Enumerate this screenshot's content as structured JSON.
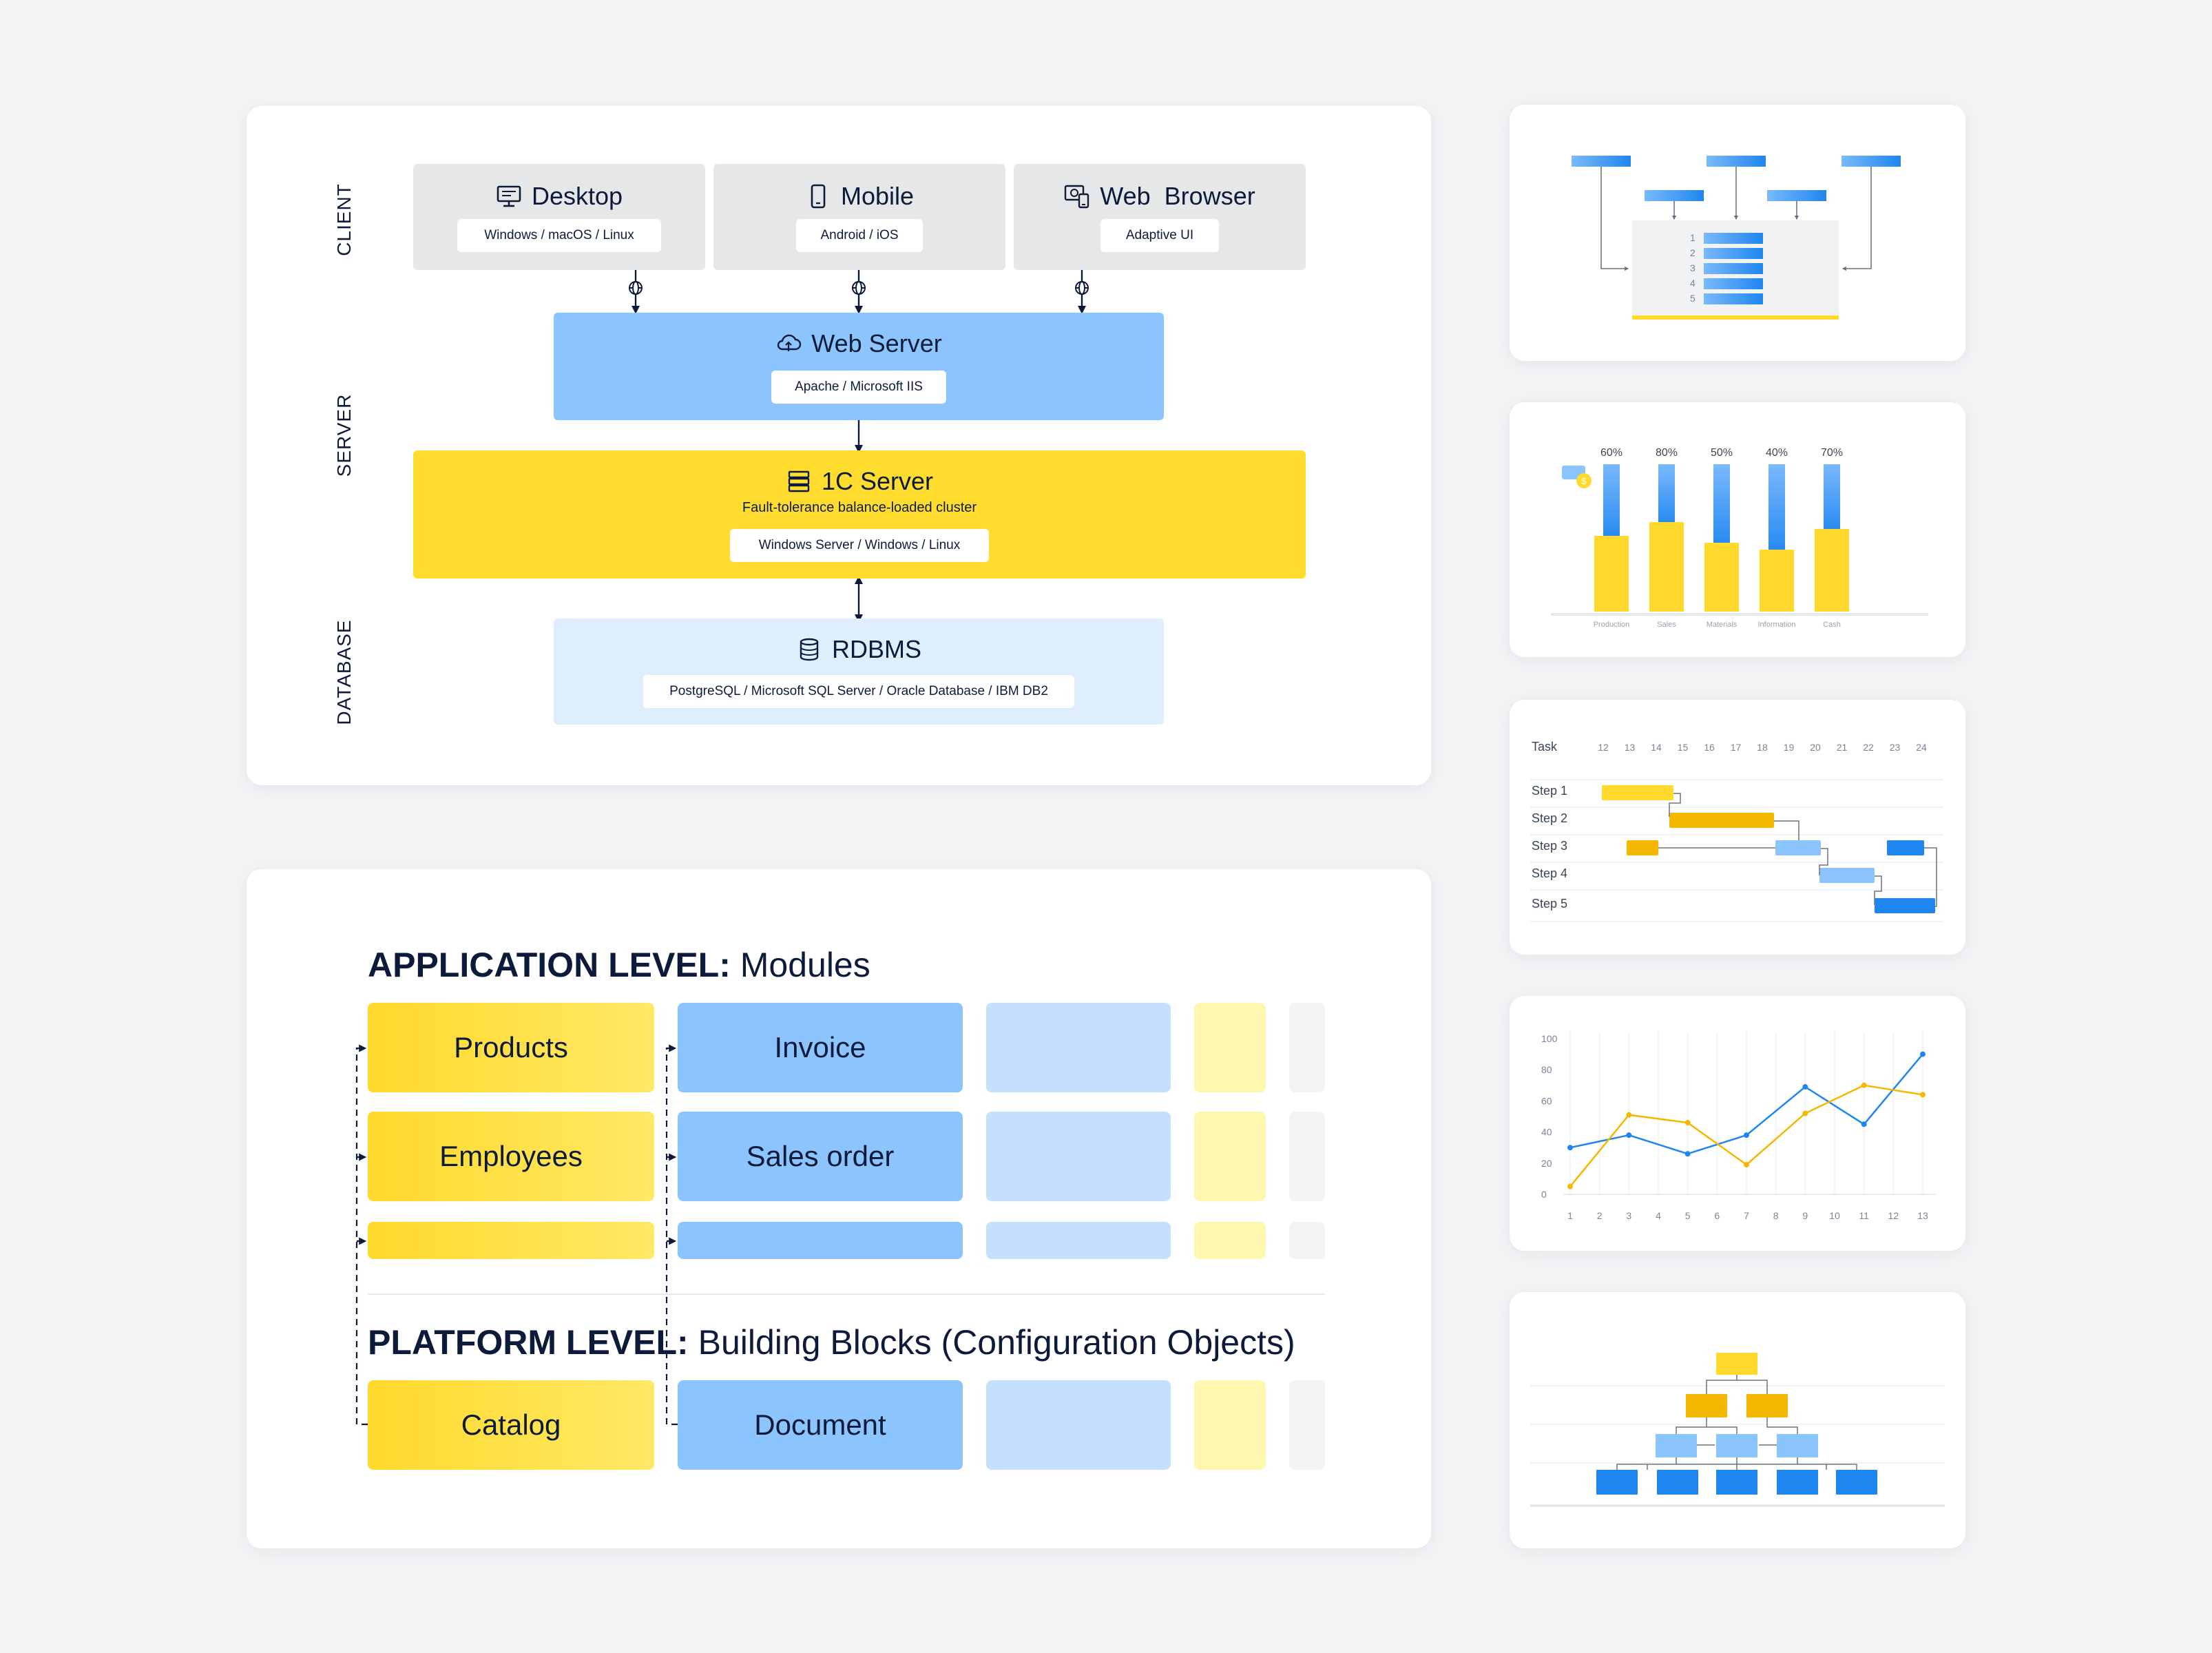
{
  "architecture": {
    "tiers": [
      "CLIENT",
      "SERVER",
      "DATABASE"
    ],
    "clients": [
      {
        "title": "Desktop",
        "sub": "Windows / macOS / Linux",
        "icon": "desktop-icon"
      },
      {
        "title": "Mobile",
        "sub": "Android / iOS",
        "icon": "mobile-icon"
      },
      {
        "title": "Web  Browser",
        "sub": "Adaptive UI",
        "icon": "web-browser-icon"
      }
    ],
    "web_server": {
      "title": "Web Server",
      "sub": "Apache / Microsoft IIS",
      "icon": "cloud-icon"
    },
    "server_1c": {
      "title": "1C Server",
      "desc": "Fault-tolerance balance-loaded cluster",
      "sub": "Windows Server / Windows / Linux",
      "icon": "server-stack-icon"
    },
    "rdbms": {
      "title": "RDBMS",
      "sub": "PostgreSQL / Microsoft SQL Server / Oracle Database / IBM DB2",
      "icon": "database-icon"
    },
    "colors": {
      "client_bg": "#e6e7e9",
      "web_server_bg": "#8cc4fd",
      "server_bg": "#ffdc2e",
      "db_bg": "#dfeefd"
    }
  },
  "levels": {
    "application": {
      "label_bold": "APPLICATION LEVEL:",
      "label_rest": " Modules"
    },
    "platform": {
      "label_bold": "PLATFORM LEVEL:",
      "label_rest": " Building Blocks (Configuration Objects)"
    },
    "modules": {
      "products": "Products",
      "invoice": "Invoice",
      "employees": "Employees",
      "sales_order": "Sales order",
      "catalog": "Catalog",
      "document": "Document"
    }
  },
  "thumbnails": {
    "list_rows": [
      "1",
      "2",
      "3",
      "4",
      "5"
    ],
    "bar_chart": {
      "categories": [
        "Production",
        "Sales",
        "Materials",
        "Information",
        "Cash"
      ],
      "percent_labels": [
        "60%",
        "80%",
        "50%",
        "40%",
        "70%"
      ],
      "coin_glyph": "$"
    },
    "gantt": {
      "header": "Task",
      "days": [
        "12",
        "13",
        "14",
        "15",
        "16",
        "17",
        "18",
        "19",
        "20",
        "21",
        "22",
        "23",
        "24"
      ],
      "tasks": [
        "Step 1",
        "Step 2",
        "Step 3",
        "Step 4",
        "Step 5"
      ]
    },
    "line_chart": {
      "y_ticks": [
        "100",
        "80",
        "60",
        "40",
        "20",
        "0"
      ],
      "x_ticks": [
        "1",
        "2",
        "3",
        "4",
        "5",
        "6",
        "7",
        "8",
        "9",
        "10",
        "11",
        "12",
        "13"
      ]
    }
  },
  "chart_data": [
    {
      "type": "bar",
      "categories": [
        "Production",
        "Sales",
        "Materials",
        "Information",
        "Cash"
      ],
      "values": [
        60,
        80,
        50,
        40,
        70
      ],
      "title": "",
      "xlabel": "",
      "ylabel": ""
    },
    {
      "type": "line",
      "x": [
        1,
        2,
        3,
        4,
        5,
        6,
        7,
        8,
        9,
        10,
        11,
        12,
        13
      ],
      "series": [
        {
          "values": [
            30,
            38,
            26,
            38,
            69,
            45,
            90
          ],
          "x": [
            1,
            3,
            5,
            7,
            9,
            11,
            13
          ],
          "color": "#1f86f0"
        },
        {
          "values": [
            5,
            51,
            46,
            19,
            52,
            70,
            64
          ],
          "x": [
            1,
            3,
            5,
            7,
            9,
            11,
            13
          ],
          "color": "#f5b800"
        }
      ],
      "ylim": [
        0,
        100
      ],
      "grid": true
    }
  ]
}
